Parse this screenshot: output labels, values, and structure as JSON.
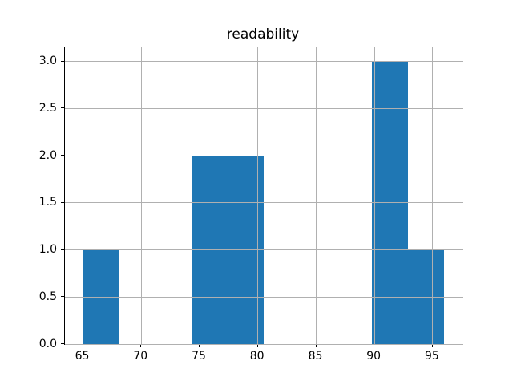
{
  "chart_data": {
    "type": "bar",
    "subtype": "histogram",
    "title": "readability",
    "xlabel": "",
    "ylabel": "",
    "bin_edges": [
      65.0,
      68.1,
      71.2,
      74.3,
      77.4,
      80.5,
      83.6,
      86.7,
      89.8,
      92.9,
      96.0
    ],
    "counts": [
      1,
      0,
      0,
      2,
      2,
      0,
      0,
      0,
      3,
      1
    ],
    "xticks": [
      65,
      70,
      75,
      80,
      85,
      90,
      95
    ],
    "yticks": [
      "0.0",
      "0.5",
      "1.0",
      "1.5",
      "2.0",
      "2.5",
      "3.0"
    ],
    "ytick_values": [
      0.0,
      0.5,
      1.0,
      1.5,
      2.0,
      2.5,
      3.0
    ],
    "xlim": [
      63.45,
      97.55
    ],
    "ylim": [
      0,
      3.15
    ],
    "grid": true,
    "legend": null,
    "bar_color": "#1f77b4",
    "grid_color": "#b0b0b0",
    "axes_edge_color": "#000000",
    "background_color": "#ffffff"
  }
}
